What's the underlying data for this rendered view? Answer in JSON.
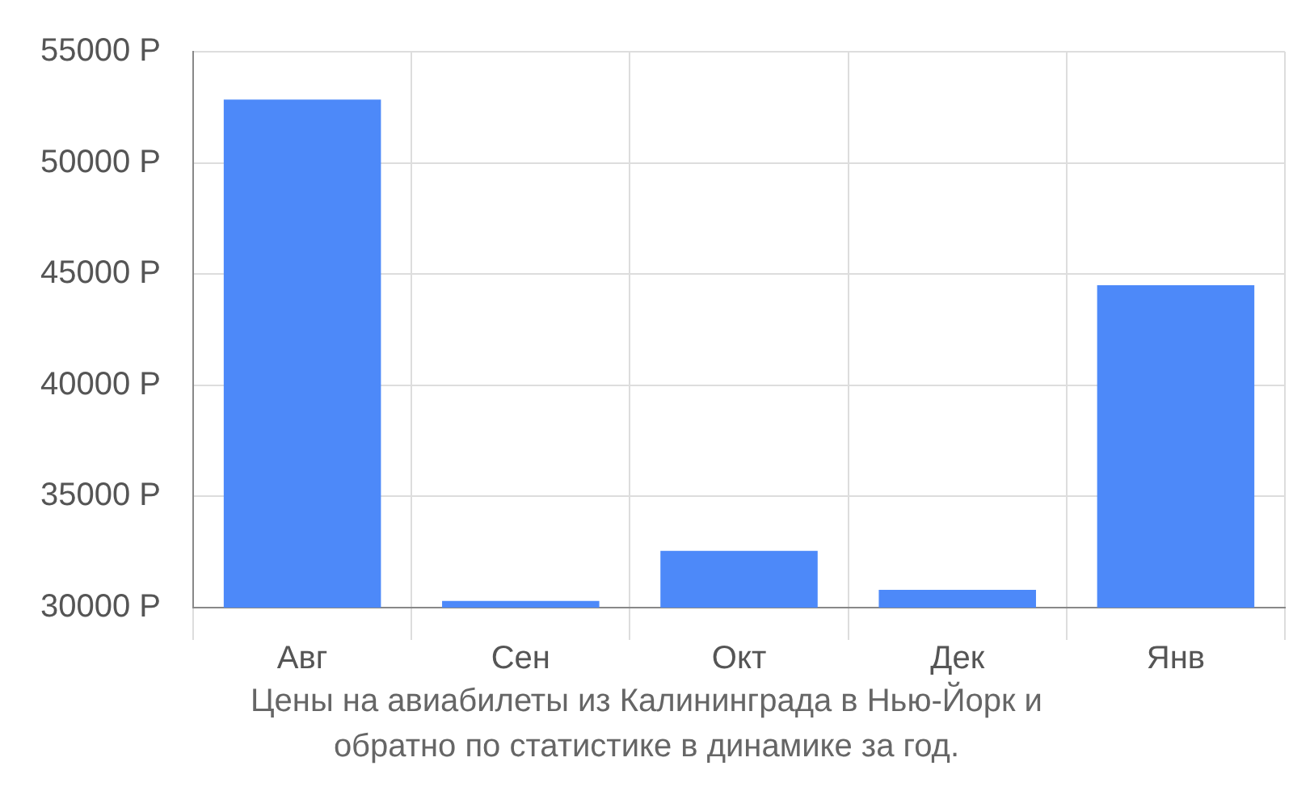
{
  "chart_data": {
    "type": "bar",
    "categories": [
      "Авг",
      "Сен",
      "Окт",
      "Дек",
      "Янв"
    ],
    "values": [
      52850,
      30300,
      32550,
      30800,
      44500
    ],
    "color": "#4d89f9",
    "ylim": [
      30000,
      55000
    ],
    "yticks": [
      {
        "value": 30000,
        "label": "30000 Р"
      },
      {
        "value": 35000,
        "label": "35000 Р"
      },
      {
        "value": 40000,
        "label": "40000 Р"
      },
      {
        "value": 45000,
        "label": "45000 Р"
      },
      {
        "value": 50000,
        "label": "50000 Р"
      },
      {
        "value": 55000,
        "label": "55000 Р"
      }
    ],
    "grid": true,
    "legend": false,
    "annotations": [
      "Цены на авиабилеты из Калининграда в Нью-Йорк и обратно по статистике в динамике за год."
    ]
  }
}
